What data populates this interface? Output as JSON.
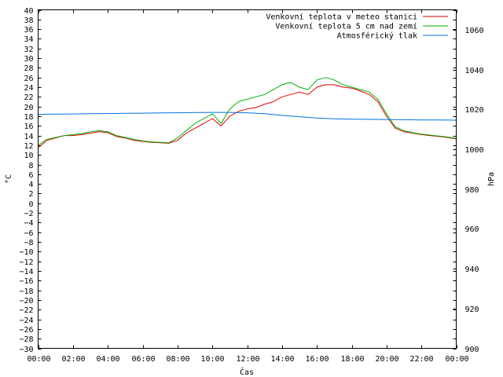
{
  "chart_data": {
    "type": "line",
    "xlabel": "Čas",
    "ylabel_left": "°C",
    "ylabel_right": "hPa",
    "x_ticks": [
      "00:00",
      "02:00",
      "04:00",
      "06:00",
      "08:00",
      "10:00",
      "12:00",
      "14:00",
      "16:00",
      "18:00",
      "20:00",
      "22:00",
      "00:00"
    ],
    "x_range_hours": [
      0,
      24
    ],
    "ylim_left": [
      -30,
      40
    ],
    "y_step_left": 2,
    "ylim_right": [
      900,
      1070
    ],
    "y_step_right": 20,
    "grid": false,
    "legend_position": "top-right",
    "series": [
      {
        "name": "Venkovní teplota v meteo stanici",
        "axis": "left",
        "color": "#e00000",
        "x": [
          0,
          0.5,
          1,
          1.5,
          2,
          2.5,
          3,
          3.5,
          4,
          4.5,
          5,
          5.5,
          6,
          6.5,
          7,
          7.5,
          8,
          8.5,
          9,
          9.5,
          10,
          10.5,
          11,
          11.5,
          12,
          12.5,
          13,
          13.5,
          14,
          14.5,
          15,
          15.5,
          16,
          16.5,
          17,
          17.5,
          18,
          18.5,
          19,
          19.5,
          20,
          20.5,
          21,
          21.5,
          22,
          22.5,
          23,
          23.5,
          24
        ],
        "values": [
          11.5,
          13.0,
          13.5,
          14.0,
          14.0,
          14.2,
          14.5,
          14.8,
          14.6,
          13.8,
          13.5,
          13.0,
          12.8,
          12.6,
          12.5,
          12.4,
          13.0,
          14.5,
          15.5,
          16.5,
          17.5,
          16.0,
          18.0,
          19.0,
          19.5,
          19.8,
          20.5,
          21.0,
          22.0,
          22.5,
          23.0,
          22.5,
          24.0,
          24.5,
          24.5,
          24.0,
          23.8,
          23.2,
          22.5,
          21.0,
          18.0,
          15.5,
          14.8,
          14.5,
          14.2,
          14.0,
          13.8,
          13.6,
          13.3
        ]
      },
      {
        "name": "Venkovní teplota 5 cm nad zemí",
        "axis": "left",
        "color": "#00b000",
        "x": [
          0,
          0.5,
          1,
          1.5,
          2,
          2.5,
          3,
          3.5,
          4,
          4.5,
          5,
          5.5,
          6,
          6.5,
          7,
          7.5,
          8,
          8.5,
          9,
          9.5,
          10,
          10.5,
          11,
          11.5,
          12,
          12.5,
          13,
          13.5,
          14,
          14.5,
          15,
          15.5,
          16,
          16.5,
          17,
          17.5,
          18,
          18.5,
          19,
          19.5,
          20,
          20.5,
          21,
          21.5,
          22,
          22.5,
          23,
          23.5,
          24
        ],
        "values": [
          12.0,
          13.2,
          13.6,
          14.0,
          14.2,
          14.4,
          14.8,
          15.0,
          14.8,
          14.0,
          13.6,
          13.2,
          12.9,
          12.7,
          12.6,
          12.5,
          13.5,
          15.0,
          16.5,
          17.5,
          18.5,
          16.5,
          19.5,
          21.0,
          21.5,
          22.0,
          22.5,
          23.5,
          24.5,
          25.0,
          24.0,
          23.5,
          25.5,
          26.0,
          25.5,
          24.5,
          24.0,
          23.5,
          23.0,
          21.5,
          18.5,
          15.8,
          15.0,
          14.6,
          14.3,
          14.1,
          13.9,
          13.7,
          13.4
        ]
      },
      {
        "name": "Atmosférický tlak",
        "axis": "right",
        "color": "#0070e0",
        "x": [
          0,
          1,
          2,
          3,
          4,
          5,
          6,
          7,
          8,
          9,
          10,
          11,
          12,
          13,
          14,
          15,
          16,
          17,
          18,
          19,
          20,
          21,
          22,
          23,
          24
        ],
        "values": [
          1017.5,
          1017.6,
          1017.7,
          1017.8,
          1017.9,
          1018.0,
          1018.1,
          1018.2,
          1018.3,
          1018.4,
          1018.5,
          1018.5,
          1018.3,
          1017.8,
          1017.0,
          1016.3,
          1015.7,
          1015.3,
          1015.1,
          1015.0,
          1014.9,
          1014.8,
          1014.7,
          1014.7,
          1014.6
        ]
      }
    ]
  }
}
